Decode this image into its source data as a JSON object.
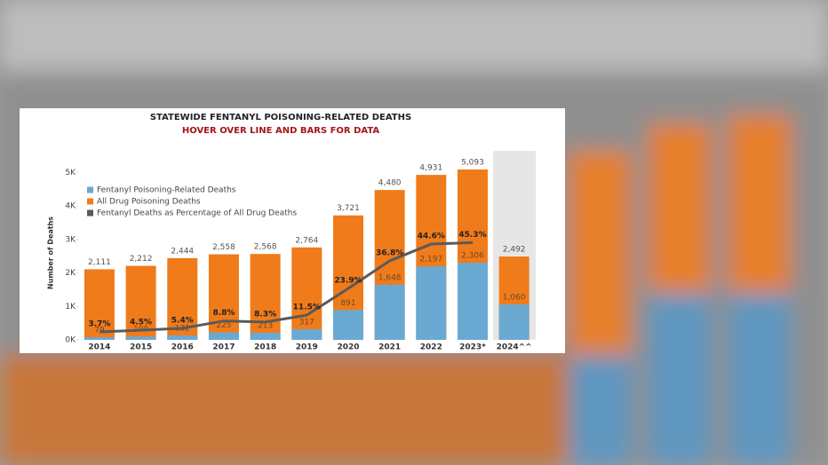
{
  "chart_data": {
    "type": "bar",
    "title": "STATEWIDE FENTANYL POISONING-RELATED DEATHS",
    "subtitle": "HOVER OVER LINE AND BARS FOR DATA",
    "y_label": "Number of Deaths",
    "categories": [
      "2014",
      "2015",
      "2016",
      "2017",
      "2018",
      "2019",
      "2020",
      "2021",
      "2022",
      "2023*",
      "2024^^"
    ],
    "series": [
      {
        "name": "Fentanyl Poisoning-Related Deaths",
        "color": "#6aaad2",
        "values": [
          79,
          100,
          132,
          225,
          213,
          317,
          891,
          1648,
          2197,
          2306,
          1060
        ],
        "value_labels": [
          "79",
          "100",
          "132",
          "225",
          "213",
          "317",
          "891",
          "1,648",
          "2,197",
          "2,306",
          "1,060"
        ]
      },
      {
        "name": "All Drug Poisoning Deaths",
        "color": "#f07b1a",
        "values": [
          2111,
          2212,
          2444,
          2558,
          2568,
          2764,
          3721,
          4480,
          4931,
          5093,
          2492
        ],
        "value_labels": [
          "2,111",
          "2,212",
          "2,444",
          "2,558",
          "2,568",
          "2,764",
          "3,721",
          "4,480",
          "4,931",
          "5,093",
          "2,492"
        ]
      },
      {
        "name": "Fentanyl Deaths as Percentage of All Drug Deaths",
        "color": "#5a5a5a",
        "type": "line",
        "axis": "y2",
        "values": [
          3.7,
          4.5,
          5.4,
          8.8,
          8.3,
          11.5,
          23.9,
          36.8,
          44.6,
          45.3,
          null
        ],
        "value_labels": [
          "3.7%",
          "4.5%",
          "5.4%",
          "8.8%",
          "8.3%",
          "11.5%",
          "23.9%",
          "36.8%",
          "44.6%",
          "45.3%",
          null
        ]
      }
    ],
    "ylim": [
      0,
      5650
    ],
    "yticks": [
      {
        "value": 0,
        "label": "0K"
      },
      {
        "value": 1000,
        "label": "1K"
      },
      {
        "value": 2000,
        "label": "2K"
      },
      {
        "value": 3000,
        "label": "3K"
      },
      {
        "value": 4000,
        "label": "4K"
      },
      {
        "value": 5000,
        "label": "5K"
      }
    ],
    "y2lim": [
      0,
      88
    ]
  }
}
